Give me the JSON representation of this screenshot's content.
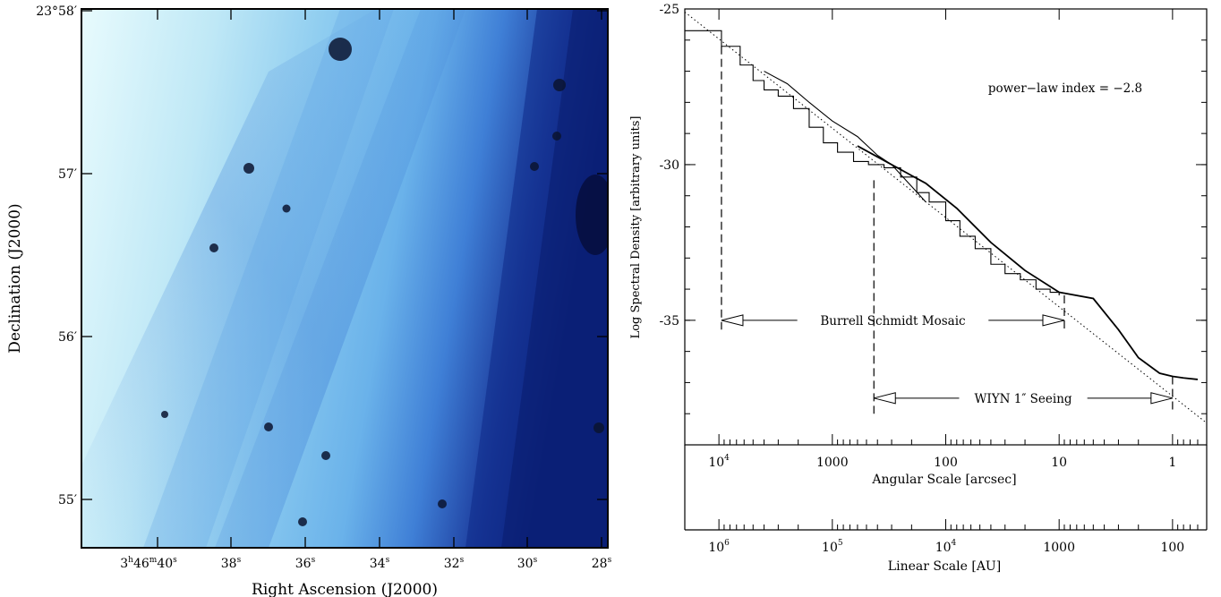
{
  "left_panel": {
    "xlabel": "Right Ascension (J2000)",
    "ylabel": "Declination (J2000)",
    "ra_ticks": [
      {
        "h": "3",
        "m": "46",
        "s": "40",
        "full": true
      },
      {
        "s": "38"
      },
      {
        "s": "36"
      },
      {
        "s": "34"
      },
      {
        "s": "32"
      },
      {
        "s": "30"
      },
      {
        "s": "28"
      }
    ],
    "dec_ticks": [
      {
        "label": "23°58′",
        "val": 58
      },
      {
        "label": "57′",
        "val": 57
      },
      {
        "label": "56′",
        "val": 56
      },
      {
        "label": "55′",
        "val": 55
      }
    ],
    "colors": {
      "light": "#dff6fb",
      "mid": "#5aa9ea",
      "dark": "#0c1f7a",
      "star": "#0a1430"
    }
  },
  "chart_data": {
    "type": "line",
    "ylabel": "Log Spectral Density [arbitrary units]",
    "xlabel": "Angular Scale [arcsec]",
    "x2label": "Linear Scale [AU]",
    "xscale": "log",
    "xlim": [
      20000,
      0.5
    ],
    "ylim": [
      -25,
      -39
    ],
    "y_ticks": [
      {
        "label": "-25",
        "val": -25
      },
      {
        "label": "-30",
        "val": -30
      },
      {
        "label": "-35",
        "val": -35
      }
    ],
    "x_ticks": [
      {
        "label": "10",
        "exp": "4",
        "val": 10000
      },
      {
        "label": "1000",
        "val": 1000
      },
      {
        "label": "100",
        "val": 100
      },
      {
        "label": "10",
        "val": 10
      },
      {
        "label": "1",
        "val": 1
      }
    ],
    "x2_ticks": [
      {
        "label": "10",
        "exp": "6",
        "val": 10000
      },
      {
        "label": "10",
        "exp": "5",
        "val": 1000
      },
      {
        "label": "10",
        "exp": "4",
        "val": 100
      },
      {
        "label": "1000",
        "val": 10
      },
      {
        "label": "100",
        "val": 1
      }
    ],
    "annotation": "power−law index = −2.8",
    "fit_line": {
      "x": [
        20000,
        0.5
      ],
      "y": [
        -25.1,
        -38.3
      ]
    },
    "series": [
      {
        "values_step": true,
        "x": [
          20000,
          9500,
          9500,
          6500,
          5000,
          4000,
          3000,
          2200,
          1600,
          1200,
          900,
          650,
          480,
          350,
          250,
          180,
          140,
          100,
          75,
          55,
          40,
          30,
          22,
          16,
          12,
          10
        ],
        "y": [
          -25.7,
          -25.7,
          -26.2,
          -26.8,
          -27.3,
          -27.6,
          -27.8,
          -28.2,
          -28.8,
          -29.3,
          -29.6,
          -29.9,
          -30.0,
          -30.1,
          -30.4,
          -30.9,
          -31.2,
          -31.8,
          -32.3,
          -32.7,
          -33.2,
          -33.5,
          -33.7,
          -34.0,
          -34.1,
          -34.2
        ]
      },
      {
        "x": [
          4000,
          2500,
          1600,
          1000,
          600,
          400,
          300,
          200,
          150
        ],
        "y": [
          -27.0,
          -27.4,
          -28.0,
          -28.6,
          -29.1,
          -29.7,
          -30.0,
          -30.7,
          -31.2
        ]
      },
      {
        "x": [
          600,
          300,
          150,
          80,
          40,
          20,
          10,
          5,
          3,
          2,
          1.3,
          1,
          0.8,
          0.6
        ],
        "y": [
          -29.4,
          -30.0,
          -30.6,
          -31.4,
          -32.5,
          -33.4,
          -34.1,
          -34.3,
          -35.3,
          -36.2,
          -36.7,
          -36.8,
          -36.85,
          -36.9
        ]
      }
    ],
    "vlines": [
      {
        "x": 9500,
        "y_from": -26.2,
        "y_to": -35.3
      },
      {
        "x": 430,
        "y_from": -30.5,
        "y_to": -38.0
      },
      {
        "x": 9,
        "y_from": -34.2,
        "y_to": -35.3
      },
      {
        "x": 1.0,
        "y_from": -36.8,
        "y_to": -38.0
      }
    ],
    "ranges": [
      {
        "label": "Burrell Schmidt Mosaic",
        "x_from": 9500,
        "x_to": 9,
        "y": -35.0
      },
      {
        "label": "WIYN 1″ Seeing",
        "x_from": 430,
        "x_to": 1.0,
        "y": -37.5
      }
    ]
  }
}
